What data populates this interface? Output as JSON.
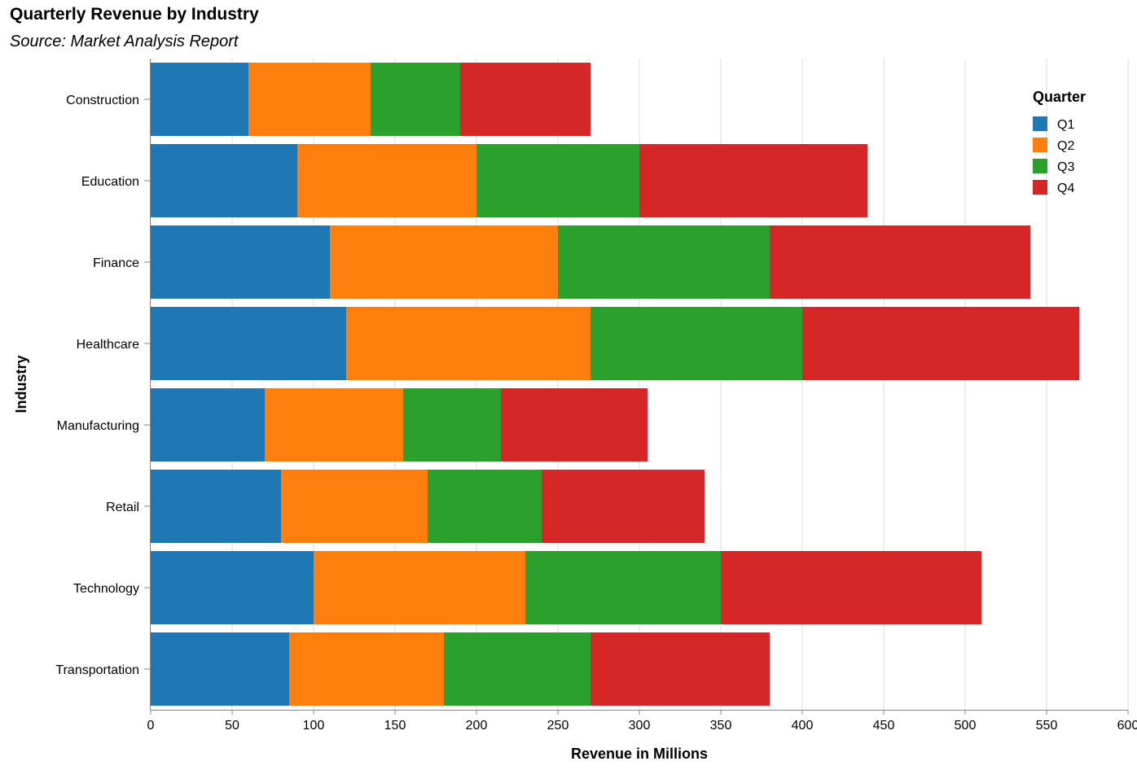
{
  "chart_data": {
    "type": "bar",
    "orientation": "horizontal",
    "stacked": true,
    "title": "Quarterly Revenue by Industry",
    "subtitle": "Source: Market Analysis Report",
    "xlabel": "Revenue in Millions",
    "ylabel": "Industry",
    "xlim": [
      0,
      600
    ],
    "xticks": [
      0,
      50,
      100,
      150,
      200,
      250,
      300,
      350,
      400,
      450,
      500,
      550,
      600
    ],
    "grid": true,
    "legend": {
      "title": "Quarter",
      "position": "top-right"
    },
    "categories": [
      "Construction",
      "Education",
      "Finance",
      "Healthcare",
      "Manufacturing",
      "Retail",
      "Technology",
      "Transportation"
    ],
    "series": [
      {
        "name": "Q1",
        "color": "#1f77b4",
        "values": [
          60,
          90,
          110,
          120,
          70,
          80,
          100,
          85
        ]
      },
      {
        "name": "Q2",
        "color": "#ff7f0e",
        "values": [
          75,
          110,
          140,
          150,
          85,
          90,
          130,
          95
        ]
      },
      {
        "name": "Q3",
        "color": "#2ca02c",
        "values": [
          55,
          100,
          130,
          130,
          60,
          70,
          120,
          90
        ]
      },
      {
        "name": "Q4",
        "color": "#d62728",
        "values": [
          80,
          140,
          160,
          170,
          90,
          100,
          160,
          110
        ]
      }
    ]
  }
}
